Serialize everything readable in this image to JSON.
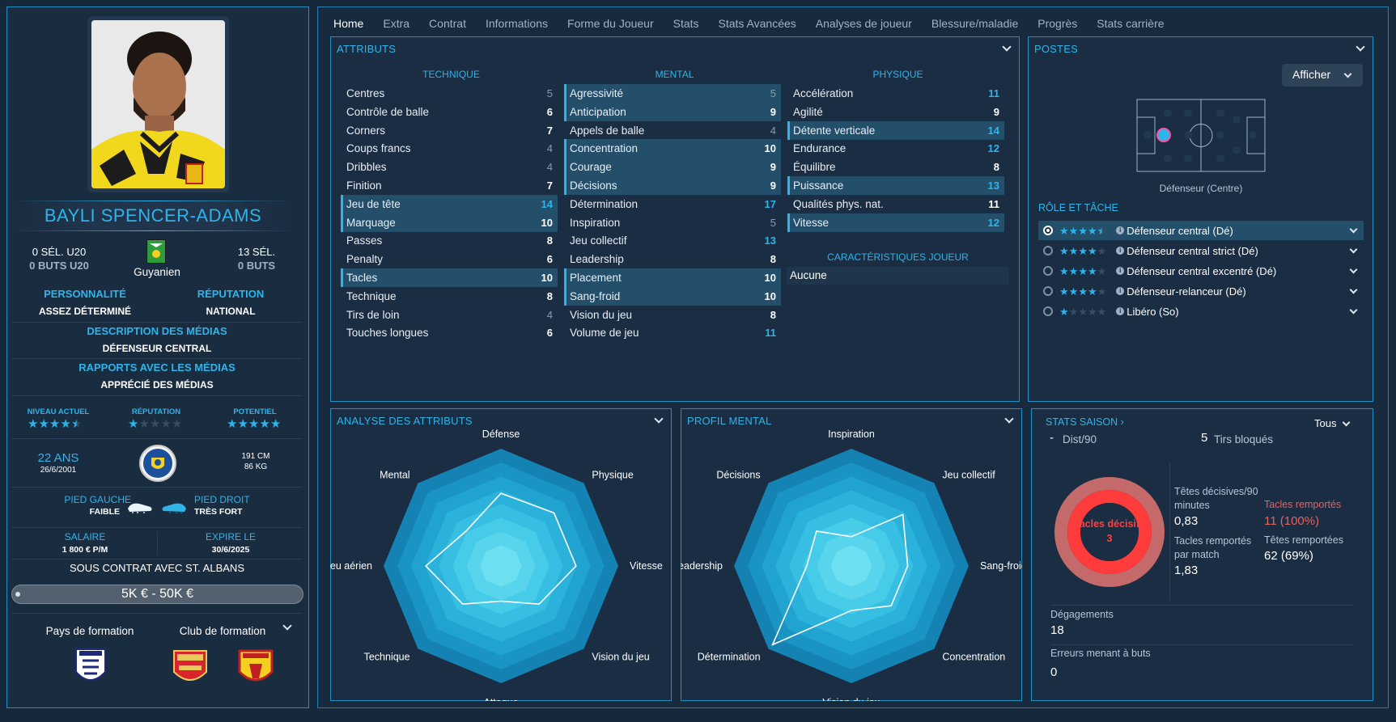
{
  "tabs": [
    "Home",
    "Extra",
    "Contrat",
    "Informations",
    "Forme du Joueur",
    "Stats",
    "Stats Avancées",
    "Analyses de joueur",
    "Blessure/maladie",
    "Progrès",
    "Stats carrière"
  ],
  "player": {
    "name": "BAYLI SPENCER-ADAMS",
    "sel_u20": "0 SÉL. U20",
    "buts_u20": "0 BUTS U20",
    "nationality": "Guyanien",
    "sel": "13 SÉL.",
    "buts": "0 BUTS",
    "personality_label": "PERSONNALITÉ",
    "personality": "ASSEZ DÉTERMINÉ",
    "reputation_label": "RÉPUTATION",
    "reputation": "NATIONAL",
    "media_desc_label": "DESCRIPTION DES MÉDIAS",
    "media_desc": "DÉFENSEUR CENTRAL",
    "media_rel_label": "RAPPORTS AVEC LES MÉDIAS",
    "media_rel": "APPRÉCIÉ DES MÉDIAS",
    "niveau_label": "NIVEAU ACTUEL",
    "niveau_stars": 4.5,
    "rep_label": "RÉPUTATION",
    "rep_stars": 1,
    "potentiel_label": "POTENTIEL",
    "potentiel_stars": 5,
    "age": "22 ANS",
    "dob": "26/6/2001",
    "height": "191 CM",
    "weight": "86 KG",
    "left_foot_label": "PIED GAUCHE",
    "left_foot": "FAIBLE",
    "right_foot_label": "PIED DROIT",
    "right_foot": "TRÈS FORT",
    "salary_label": "SALAIRE",
    "salary": "1 800 € P/M",
    "expires_label": "EXPIRE LE",
    "expires": "30/6/2025",
    "contract": "SOUS CONTRAT AVEC ST. ALBANS",
    "value": "5K € - 50K €",
    "training_country_label": "Pays de formation",
    "training_club_label": "Club de formation"
  },
  "attributes": {
    "title": "ATTRIBUTS",
    "technique_label": "TECHNIQUE",
    "mental_label": "MENTAL",
    "physique_label": "PHYSIQUE",
    "traits_label": "CARACTÉRISTIQUES JOUEUR",
    "traits": "Aucune",
    "technique": [
      {
        "name": "Centres",
        "value": "5",
        "style": "grey",
        "hl": false
      },
      {
        "name": "Contrôle de balle",
        "value": "6",
        "style": "white",
        "hl": false
      },
      {
        "name": "Corners",
        "value": "7",
        "style": "white",
        "hl": false
      },
      {
        "name": "Coups francs",
        "value": "4",
        "style": "grey",
        "hl": false
      },
      {
        "name": "Dribbles",
        "value": "4",
        "style": "grey",
        "hl": false
      },
      {
        "name": "Finition",
        "value": "7",
        "style": "white",
        "hl": false
      },
      {
        "name": "Jeu de tête",
        "value": "14",
        "style": "blue",
        "hl": true
      },
      {
        "name": "Marquage",
        "value": "10",
        "style": "white",
        "hl": true
      },
      {
        "name": "Passes",
        "value": "8",
        "style": "white",
        "hl": false
      },
      {
        "name": "Penalty",
        "value": "6",
        "style": "white",
        "hl": false
      },
      {
        "name": "Tacles",
        "value": "10",
        "style": "white",
        "hl": true
      },
      {
        "name": "Technique",
        "value": "8",
        "style": "white",
        "hl": false
      },
      {
        "name": "Tirs de loin",
        "value": "4",
        "style": "grey",
        "hl": false
      },
      {
        "name": "Touches longues",
        "value": "6",
        "style": "white",
        "hl": false
      }
    ],
    "mental": [
      {
        "name": "Agressivité",
        "value": "5",
        "style": "grey",
        "hl": true
      },
      {
        "name": "Anticipation",
        "value": "9",
        "style": "white",
        "hl": true
      },
      {
        "name": "Appels de balle",
        "value": "4",
        "style": "grey",
        "hl": false
      },
      {
        "name": "Concentration",
        "value": "10",
        "style": "white",
        "hl": true
      },
      {
        "name": "Courage",
        "value": "9",
        "style": "white",
        "hl": true
      },
      {
        "name": "Décisions",
        "value": "9",
        "style": "white",
        "hl": true
      },
      {
        "name": "Détermination",
        "value": "17",
        "style": "blue",
        "hl": false
      },
      {
        "name": "Inspiration",
        "value": "5",
        "style": "grey",
        "hl": false
      },
      {
        "name": "Jeu collectif",
        "value": "13",
        "style": "blue",
        "hl": false
      },
      {
        "name": "Leadership",
        "value": "8",
        "style": "white",
        "hl": false
      },
      {
        "name": "Placement",
        "value": "10",
        "style": "white",
        "hl": true
      },
      {
        "name": "Sang-froid",
        "value": "10",
        "style": "white",
        "hl": true
      },
      {
        "name": "Vision du jeu",
        "value": "8",
        "style": "white",
        "hl": false
      },
      {
        "name": "Volume de jeu",
        "value": "11",
        "style": "blue",
        "hl": false
      }
    ],
    "physique": [
      {
        "name": "Accélération",
        "value": "11",
        "style": "blue",
        "hl": false
      },
      {
        "name": "Agilité",
        "value": "9",
        "style": "white",
        "hl": false
      },
      {
        "name": "Détente verticale",
        "value": "14",
        "style": "blue",
        "hl": true
      },
      {
        "name": "Endurance",
        "value": "12",
        "style": "blue",
        "hl": false
      },
      {
        "name": "Équilibre",
        "value": "8",
        "style": "white",
        "hl": false
      },
      {
        "name": "Puissance",
        "value": "13",
        "style": "blue",
        "hl": true
      },
      {
        "name": "Qualités phys. nat.",
        "value": "11",
        "style": "white",
        "hl": false
      },
      {
        "name": "Vitesse",
        "value": "12",
        "style": "blue",
        "hl": true
      }
    ]
  },
  "positions": {
    "title": "POSTES",
    "button": "Afficher",
    "position": "Défenseur (Centre)",
    "roles_label": "RÔLE ET TÂCHE",
    "roles": [
      {
        "name": "Défenseur central (Dé)",
        "stars": 4.5,
        "selected": true
      },
      {
        "name": "Défenseur central strict (Dé)",
        "stars": 4,
        "selected": false
      },
      {
        "name": "Défenseur central excentré (Dé)",
        "stars": 4,
        "selected": false
      },
      {
        "name": "Défenseur-relanceur (Dé)",
        "stars": 4,
        "selected": false
      },
      {
        "name": "Libéro (So)",
        "stars": 1,
        "selected": false
      }
    ]
  },
  "analysis": {
    "title": "ANALYSE DES ATTRIBUTS",
    "labels": [
      "Défense",
      "Physique",
      "Vitesse",
      "Vision du jeu",
      "Attaque",
      "Technique",
      "Jeu aérien",
      "Mental"
    ],
    "values": [
      0.62,
      0.64,
      0.64,
      0.46,
      0.3,
      0.46,
      0.64,
      0.42
    ]
  },
  "mental_profile": {
    "title": "PROFIL MENTAL",
    "labels": [
      "Inspiration",
      "Jeu collectif",
      "Sang-froid",
      "Concentration",
      "Vision du jeu",
      "Détermination",
      "Leadership",
      "Décisions"
    ],
    "values": [
      0.25,
      0.62,
      0.48,
      0.48,
      0.38,
      0.95,
      0.38,
      0.42
    ]
  },
  "season_stats": {
    "title": "STATS SAISON",
    "filter": "Tous",
    "dist_value": "-",
    "dist_label": "Dist/90",
    "tirs_value": "5",
    "tirs_label": "Tirs bloqués",
    "ring_label": "Tacles décisifs",
    "ring_value": "3",
    "tetes_dec_label": "Têtes décisives/90 minutes",
    "tetes_dec_value": "0,83",
    "tacles_rep_label": "Tacles remportés",
    "tacles_rep_value": "11 (100%)",
    "tacles_match_label": "Tacles remportés par match",
    "tacles_match_value": "1,83",
    "tetes_rem_label": "Têtes remportées",
    "tetes_rem_value": "62 (69%)",
    "degagements_label": "Dégagements",
    "degagements_value": "18",
    "erreurs_label": "Erreurs menant à buts",
    "erreurs_value": "0"
  },
  "colors": {
    "accent": "#2fb4ea",
    "highlight": "#244f6b",
    "ring": "#ff3b3b"
  }
}
